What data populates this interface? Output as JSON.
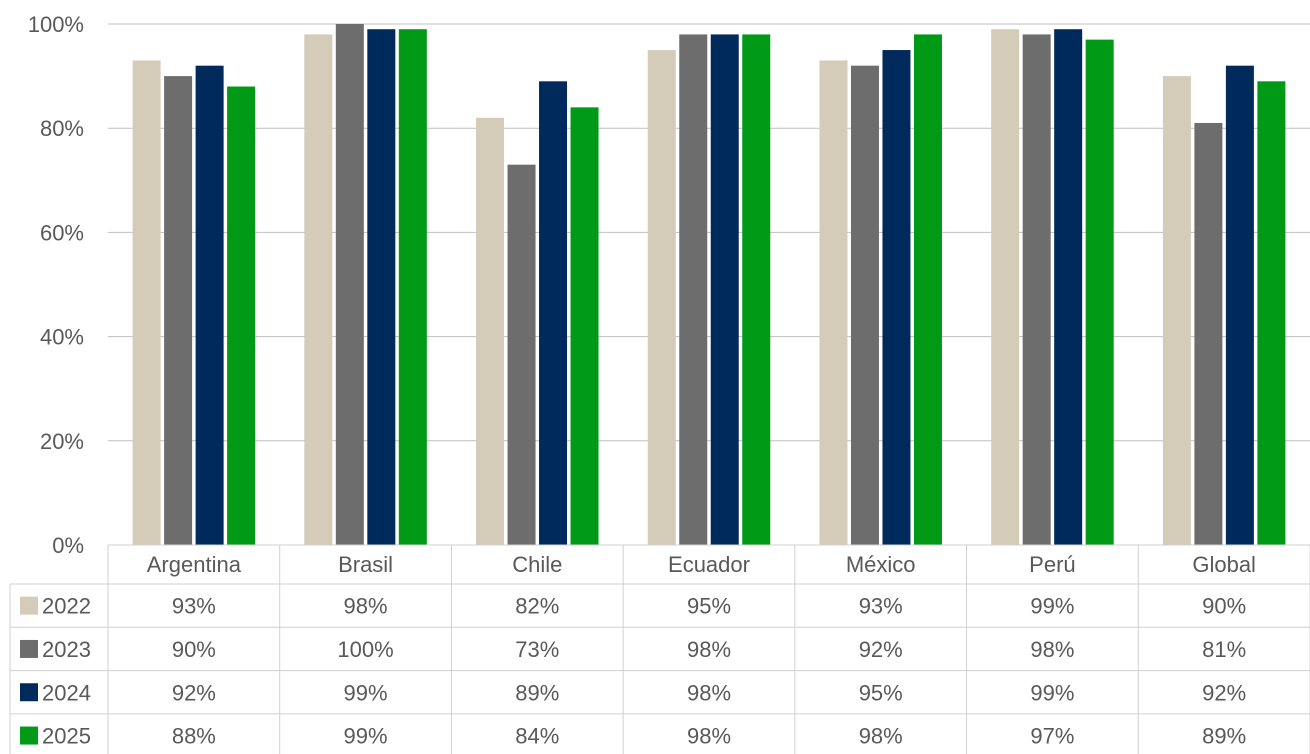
{
  "chart_data": {
    "type": "bar",
    "categories": [
      "Argentina",
      "Brasil",
      "Chile",
      "Ecuador",
      "México",
      "Perú",
      "Global"
    ],
    "series": [
      {
        "name": "2022",
        "color": "#d4cbb8",
        "values": [
          93,
          98,
          82,
          95,
          93,
          99,
          90
        ],
        "labels": [
          "93%",
          "98%",
          "82%",
          "95%",
          "93%",
          "99%",
          "90%"
        ]
      },
      {
        "name": "2023",
        "color": "#6d6d6d",
        "values": [
          90,
          100,
          73,
          98,
          92,
          98,
          81
        ],
        "labels": [
          "90%",
          "100%",
          "73%",
          "98%",
          "92%",
          "98%",
          "81%"
        ]
      },
      {
        "name": "2024",
        "color": "#002a5c",
        "values": [
          92,
          99,
          89,
          98,
          95,
          99,
          92
        ],
        "labels": [
          "92%",
          "99%",
          "89%",
          "98%",
          "95%",
          "99%",
          "92%"
        ]
      },
      {
        "name": "2025",
        "color": "#009a17",
        "values": [
          88,
          99,
          84,
          98,
          98,
          97,
          89
        ],
        "labels": [
          "88%",
          "99%",
          "84%",
          "98%",
          "98%",
          "97%",
          "89%"
        ]
      }
    ],
    "yticks": [
      {
        "value": 0,
        "label": "0%"
      },
      {
        "value": 20,
        "label": "20%"
      },
      {
        "value": 40,
        "label": "40%"
      },
      {
        "value": 60,
        "label": "60%"
      },
      {
        "value": 80,
        "label": "80%"
      },
      {
        "value": 100,
        "label": "100%"
      }
    ],
    "ylim": [
      0,
      100
    ],
    "grid": true,
    "legend": "data-table",
    "title": "",
    "xlabel": "",
    "ylabel": ""
  }
}
